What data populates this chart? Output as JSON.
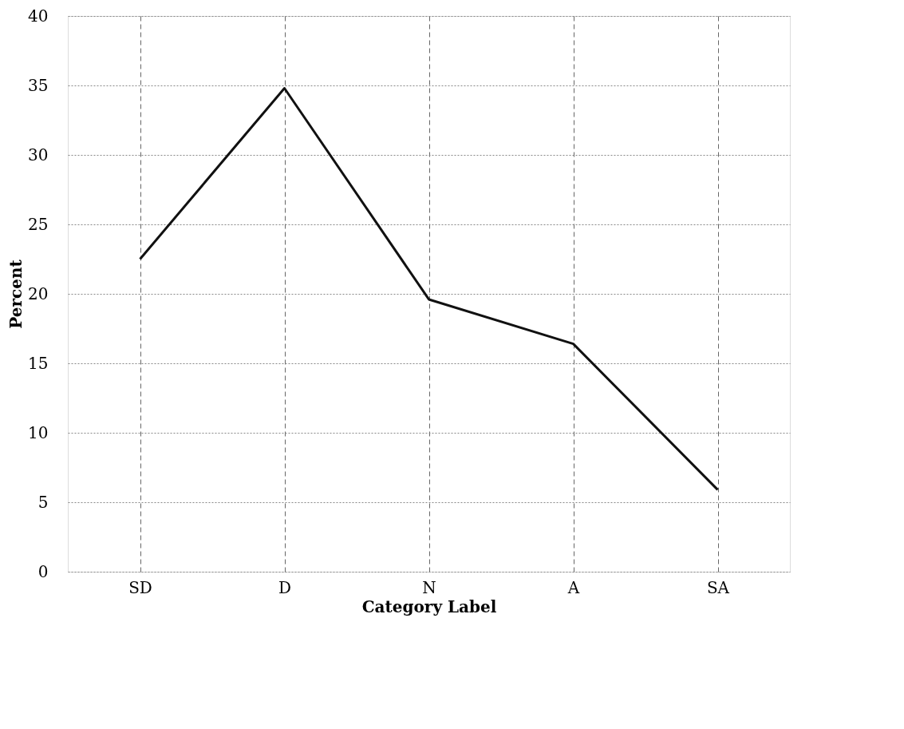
{
  "chart_data": {
    "type": "line",
    "xlabel": "Category Label",
    "ylabel": "Percent",
    "categories": [
      "SD",
      "D",
      "N",
      "A",
      "SA"
    ],
    "series": [
      {
        "color": "#111111",
        "values": [
          22.5,
          34.8,
          19.6,
          16.4,
          5.9
        ]
      }
    ],
    "ylim": [
      0,
      40
    ],
    "yticks": [
      0,
      5,
      10,
      15,
      20,
      25,
      30,
      35,
      40
    ],
    "grid": true,
    "line_style": "solid"
  }
}
